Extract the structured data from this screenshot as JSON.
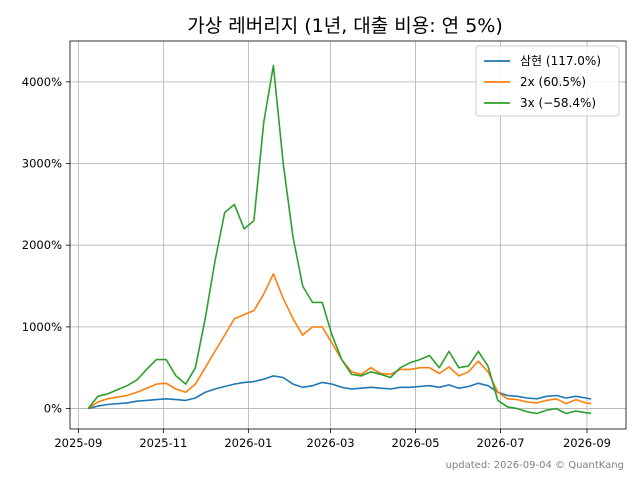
{
  "chart_data": {
    "type": "line",
    "title": "가상 레버리지 (1년, 대출 비용: 연 5%)",
    "xlabel": "",
    "ylabel": "",
    "x_ticks": [
      "2025-09",
      "2025-11",
      "2026-01",
      "2026-03",
      "2026-05",
      "2026-07",
      "2026-09"
    ],
    "y_ticks": [
      "0%",
      "1000%",
      "2000%",
      "3000%",
      "4000%"
    ],
    "ylim": [
      -250,
      4500
    ],
    "xlim": [
      "2025-08-26",
      "2026-09-29"
    ],
    "grid": true,
    "legend_position": "top-right",
    "colors": {
      "삼현": "#1f77b4",
      "2x": "#ff7f0e",
      "3x": "#2ca02c"
    },
    "x": [
      "2025-09-08",
      "2025-09-15",
      "2025-09-22",
      "2025-09-29",
      "2025-10-06",
      "2025-10-13",
      "2025-10-20",
      "2025-10-27",
      "2025-11-03",
      "2025-11-10",
      "2025-11-17",
      "2025-11-24",
      "2025-12-01",
      "2025-12-08",
      "2025-12-15",
      "2025-12-22",
      "2025-12-29",
      "2026-01-05",
      "2026-01-12",
      "2026-01-19",
      "2026-01-26",
      "2026-02-02",
      "2026-02-09",
      "2026-02-16",
      "2026-02-23",
      "2026-03-02",
      "2026-03-09",
      "2026-03-16",
      "2026-03-23",
      "2026-03-30",
      "2026-04-06",
      "2026-04-13",
      "2026-04-20",
      "2026-04-27",
      "2026-05-04",
      "2026-05-11",
      "2026-05-18",
      "2026-05-25",
      "2026-06-01",
      "2026-06-08",
      "2026-06-15",
      "2026-06-22",
      "2026-06-29",
      "2026-07-06",
      "2026-07-13",
      "2026-07-20",
      "2026-07-27",
      "2026-08-03",
      "2026-08-10",
      "2026-08-17",
      "2026-08-24",
      "2026-08-31",
      "2026-09-04"
    ],
    "series": [
      {
        "name": "삼현 (117.0%)",
        "values": [
          0,
          30,
          50,
          60,
          70,
          90,
          100,
          110,
          120,
          110,
          100,
          130,
          200,
          240,
          270,
          300,
          320,
          330,
          360,
          400,
          380,
          300,
          260,
          280,
          320,
          300,
          260,
          240,
          250,
          260,
          250,
          240,
          260,
          260,
          270,
          280,
          260,
          290,
          250,
          270,
          310,
          280,
          200,
          160,
          150,
          130,
          120,
          150,
          160,
          130,
          150,
          130,
          117
        ]
      },
      {
        "name": "2x (60.5%)",
        "values": [
          0,
          80,
          120,
          140,
          160,
          200,
          250,
          300,
          310,
          240,
          200,
          300,
          500,
          700,
          900,
          1100,
          1150,
          1200,
          1400,
          1650,
          1350,
          1100,
          900,
          1000,
          1000,
          800,
          600,
          450,
          420,
          500,
          430,
          420,
          480,
          480,
          500,
          500,
          430,
          510,
          400,
          450,
          580,
          450,
          200,
          120,
          110,
          80,
          70,
          100,
          120,
          60,
          110,
          70,
          60.5
        ]
      },
      {
        "name": "3x (−58.4%)",
        "values": [
          0,
          150,
          180,
          230,
          280,
          350,
          480,
          600,
          600,
          400,
          300,
          500,
          1100,
          1800,
          2400,
          2500,
          2200,
          2300,
          3500,
          4200,
          3000,
          2100,
          1500,
          1300,
          1300,
          900,
          600,
          420,
          400,
          450,
          420,
          380,
          500,
          560,
          600,
          650,
          500,
          700,
          500,
          520,
          700,
          520,
          100,
          20,
          0,
          -40,
          -60,
          -20,
          0,
          -60,
          -30,
          -50,
          -58.4
        ]
      }
    ]
  },
  "footer": "updated: 2026-09-04 © QuantKang"
}
